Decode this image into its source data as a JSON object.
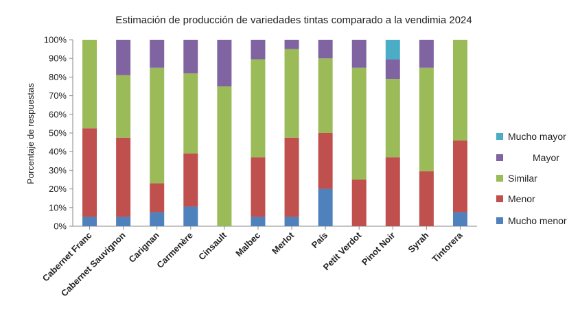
{
  "chart_data": {
    "type": "bar",
    "stacked": true,
    "title": "Estimación de producción de variedades tintas comparado a la vendimia 2024",
    "xlabel": "",
    "ylabel": "Porcentaje de respuestas",
    "ylim": [
      0,
      100
    ],
    "yticks": [
      "0%",
      "10%",
      "20%",
      "30%",
      "40%",
      "50%",
      "60%",
      "70%",
      "80%",
      "90%",
      "100%"
    ],
    "categories": [
      "Cabernet Franc",
      "Cabernet Sauvignon",
      "Carignan",
      "Carmenère",
      "Cinsault",
      "Malbec",
      "Merlot",
      "País",
      "Petit Verdot",
      "Pinot Noir",
      "Syrah",
      "Tintorera"
    ],
    "series": [
      {
        "name": "Mucho menor",
        "color": "#4f81bd",
        "values": [
          5,
          5,
          7.5,
          10.5,
          0,
          5,
          5,
          20,
          0,
          0,
          0,
          7.5
        ]
      },
      {
        "name": "Menor",
        "color": "#c0504d",
        "values": [
          47.5,
          42.5,
          15.5,
          28.5,
          0,
          32,
          42.5,
          30,
          25,
          37,
          29.5,
          38.5
        ]
      },
      {
        "name": "Similar",
        "color": "#9bbb59",
        "values": [
          47.5,
          33.5,
          62,
          43,
          75,
          52.5,
          47.5,
          40,
          60,
          42,
          55.5,
          54
        ]
      },
      {
        "name": "Mayor",
        "color": "#8064a2",
        "values": [
          0,
          19,
          15,
          18,
          25,
          10.5,
          5,
          10,
          15,
          10.5,
          15,
          0
        ]
      },
      {
        "name": "Mucho mayor",
        "color": "#4bacc6",
        "values": [
          0,
          0,
          0,
          0,
          0,
          0,
          0,
          0,
          0,
          10.5,
          0,
          0
        ]
      }
    ],
    "legend": {
      "position": "right",
      "order": [
        "Mucho mayor",
        "Mayor",
        "Similar",
        "Menor",
        "Mucho menor"
      ]
    },
    "grid": false
  }
}
